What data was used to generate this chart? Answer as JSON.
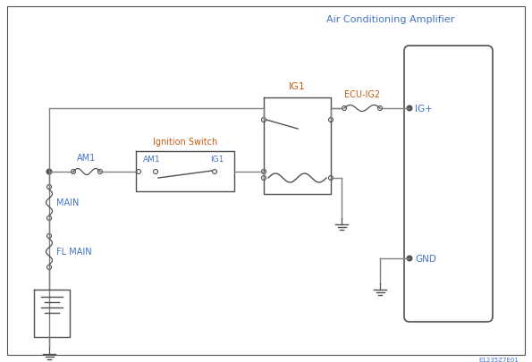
{
  "bg_color": "#ffffff",
  "border_color": "#505050",
  "wire_color": "#808080",
  "text_blue": "#4472c4",
  "text_orange": "#c55a11",
  "title": "Air Conditioning Amplifier",
  "watermark": "E1235Z7E01",
  "lbl_am1": "AM1",
  "lbl_main": "MAIN",
  "lbl_flmain": "FL MAIN",
  "lbl_ig1": "IG1",
  "lbl_ig_sw": "Ignition Switch",
  "lbl_am1_sw": "AM1",
  "lbl_ig1_sw": "IG1",
  "lbl_ecu": "ECU-IG2",
  "lbl_igplus": "IG+",
  "lbl_gnd": "GND"
}
